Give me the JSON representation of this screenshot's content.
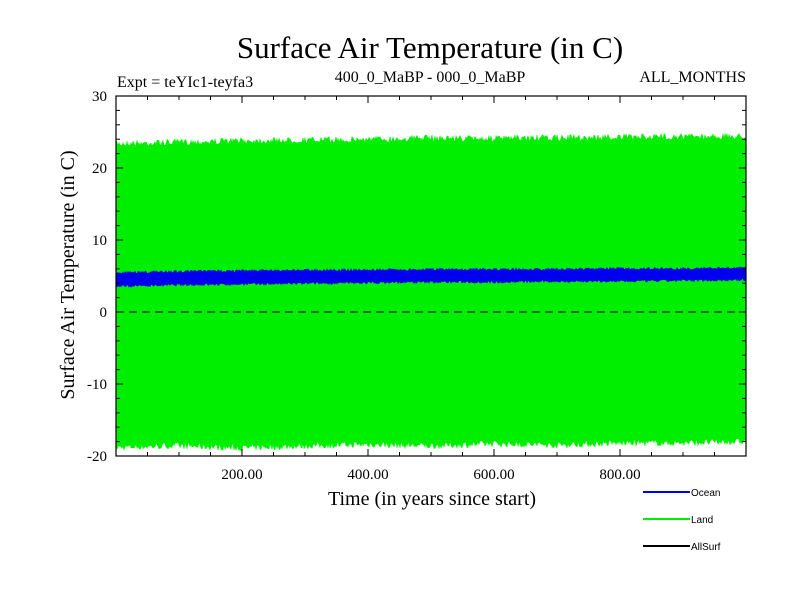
{
  "chart_data": {
    "type": "area",
    "title": "Surface Air Temperature (in C)",
    "subtitle_left": "Expt = teYIc1-teyfa3",
    "subtitle_center": "400_0_MaBP - 000_0_MaBP",
    "subtitle_right": "ALL_MONTHS",
    "xlabel": "Time (in years since start)",
    "ylabel": "Surface Air Temperature (in C)",
    "xlim": [
      0,
      1000
    ],
    "ylim": [
      -20,
      30
    ],
    "xticks": [
      200,
      400,
      600,
      800
    ],
    "xtick_labels": [
      "200.00",
      "400.00",
      "600.00",
      "800.00"
    ],
    "yticks": [
      -20,
      -10,
      0,
      10,
      20,
      30
    ],
    "ytick_labels": [
      "-20",
      "-10",
      "0",
      "10",
      "20",
      "30"
    ],
    "zero_line": true,
    "legend_position": "bottom-right",
    "series": [
      {
        "name": "Land",
        "color": "#00ee00",
        "x": [
          0,
          100,
          200,
          300,
          400,
          500,
          600,
          700,
          800,
          900,
          1000
        ],
        "y_min": [
          -19.2,
          -19.0,
          -19.3,
          -19.0,
          -18.8,
          -19.0,
          -18.7,
          -18.9,
          -18.6,
          -18.6,
          -18.4
        ],
        "y_max": [
          23.8,
          24.0,
          24.2,
          24.3,
          24.4,
          24.6,
          24.5,
          24.6,
          24.7,
          24.8,
          24.8
        ]
      },
      {
        "name": "Ocean",
        "color": "#0000ee",
        "x": [
          0,
          100,
          200,
          300,
          400,
          500,
          600,
          700,
          800,
          900,
          1000
        ],
        "y_min": [
          3.4,
          3.6,
          3.7,
          3.8,
          3.9,
          4.0,
          4.0,
          4.1,
          4.1,
          4.2,
          4.3
        ],
        "y_max": [
          5.6,
          5.8,
          5.9,
          6.0,
          6.0,
          6.1,
          6.1,
          6.1,
          6.2,
          6.2,
          6.3
        ]
      },
      {
        "name": "AllSurf",
        "color": "#000000",
        "x": [],
        "y_min": [],
        "y_max": []
      }
    ]
  }
}
